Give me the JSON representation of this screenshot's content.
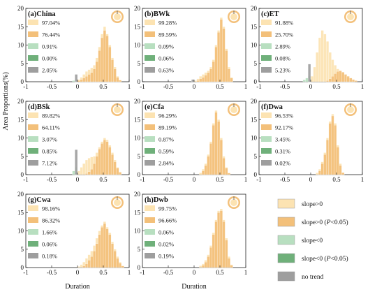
{
  "colors": {
    "slope_pos": "#fce3b2",
    "slope_pos_sig": "#f3c07a",
    "slope_neg": "#b8dfc0",
    "slope_neg_sig": "#6fb07a",
    "no_trend": "#9e9e9e",
    "ring_outer": "#f3c07a",
    "ring_inner": "#fce3b2"
  },
  "legend": {
    "items": [
      {
        "key": "slope_pos",
        "label": "slope>0",
        "suffix": ""
      },
      {
        "key": "slope_pos_sig",
        "label": "slope>0 (",
        "italic": "P",
        "suffix": "<0.05)"
      },
      {
        "key": "slope_neg",
        "label": "slope<0",
        "suffix": ""
      },
      {
        "key": "slope_neg_sig",
        "label": "slope<0 (",
        "italic": "P",
        "suffix": "<0.05)"
      },
      {
        "key": "no_trend",
        "label": "no trend",
        "suffix": ""
      }
    ]
  },
  "axes": {
    "ylabel": "Area Proportions(%)",
    "xlabel": "Duration",
    "xticks": [
      "-1",
      "-0.5",
      "0",
      "0.5",
      "1"
    ],
    "yticks": [
      "0",
      "5",
      "10",
      "15",
      "20"
    ]
  },
  "chart_data": [
    {
      "type": "bar",
      "title": "(a)China",
      "xlim": [
        -1,
        1
      ],
      "ylim": [
        0,
        20
      ],
      "percentages": [
        "97.04%",
        "76.44%",
        "0.91%",
        "0.00%",
        "2.05%"
      ],
      "bin_width": 0.05,
      "series": [
        {
          "name": "slope>0",
          "x": [
            -0.05,
            0,
            0.05,
            0.1,
            0.15,
            0.2,
            0.25,
            0.3,
            0.35,
            0.4,
            0.45,
            0.5,
            0.55,
            0.6,
            0.65,
            0.7,
            0.75,
            0.8
          ],
          "values": [
            0.3,
            0.6,
            1.2,
            2,
            2.8,
            3.3,
            3.8,
            4.5,
            6.5,
            9.5,
            13,
            15,
            13,
            10,
            6.5,
            4,
            1.5,
            0.5
          ]
        },
        {
          "name": "slope>0 (P<0.05)",
          "x": [
            0,
            0.05,
            0.1,
            0.15,
            0.2,
            0.25,
            0.3,
            0.35,
            0.4,
            0.45,
            0.5,
            0.55,
            0.6,
            0.65,
            0.7,
            0.75,
            0.8
          ],
          "values": [
            0.3,
            0.6,
            1,
            1.5,
            2,
            2.5,
            3.5,
            5.5,
            8.5,
            12,
            14,
            12.5,
            9.5,
            6,
            3.5,
            1.2,
            0.4
          ]
        },
        {
          "name": "slope<0",
          "x": [
            -0.1,
            -0.05
          ],
          "values": [
            0.3,
            0.5
          ]
        },
        {
          "name": "no trend",
          "x": [
            -0.05
          ],
          "values": [
            2
          ]
        }
      ]
    },
    {
      "type": "bar",
      "title": "(b)BWk",
      "xlim": [
        -1,
        1
      ],
      "ylim": [
        0,
        20
      ],
      "percentages": [
        "99.28%",
        "89.59%",
        "0.09%",
        "0.06%",
        "0.63%"
      ],
      "bin_width": 0.05,
      "series": [
        {
          "name": "slope>0",
          "x": [
            0,
            0.05,
            0.1,
            0.15,
            0.2,
            0.25,
            0.3,
            0.35,
            0.4,
            0.45,
            0.5,
            0.55,
            0.6,
            0.65,
            0.7
          ],
          "values": [
            0.3,
            0.8,
            1.5,
            2,
            2.5,
            3,
            4,
            6,
            10,
            14,
            17.5,
            15,
            9,
            4,
            1.2
          ]
        },
        {
          "name": "slope>0 (P<0.05)",
          "x": [
            0.05,
            0.1,
            0.15,
            0.2,
            0.25,
            0.3,
            0.35,
            0.4,
            0.45,
            0.5,
            0.55,
            0.6,
            0.65,
            0.7
          ],
          "values": [
            0.3,
            0.8,
            1.2,
            1.8,
            2.5,
            3.5,
            5.5,
            9.5,
            13.5,
            17,
            14.5,
            8.5,
            3.5,
            1
          ]
        },
        {
          "name": "no trend",
          "x": [
            -0.05
          ],
          "values": [
            0.6
          ]
        }
      ]
    },
    {
      "type": "bar",
      "title": "(c)ET",
      "xlim": [
        -1,
        1
      ],
      "ylim": [
        0,
        20
      ],
      "percentages": [
        "91.88%",
        "25.70%",
        "2.89%",
        "0.08%",
        "5.23%"
      ],
      "bin_width": 0.05,
      "series": [
        {
          "name": "slope>0",
          "x": [
            0,
            0.05,
            0.1,
            0.15,
            0.2,
            0.25,
            0.3,
            0.35,
            0.4,
            0.45,
            0.5,
            0.55,
            0.6,
            0.65,
            0.7,
            0.75,
            0.8
          ],
          "values": [
            1.5,
            4,
            8,
            12,
            14,
            13,
            11,
            8,
            6,
            4.5,
            3.5,
            2.5,
            2,
            1.5,
            1,
            0.5,
            0.3
          ]
        },
        {
          "name": "slope>0 (P<0.05)",
          "x": [
            0.3,
            0.35,
            0.4,
            0.45,
            0.5,
            0.55,
            0.6,
            0.65,
            0.7,
            0.75,
            0.8,
            0.85
          ],
          "values": [
            0.3,
            0.8,
            1.5,
            2.2,
            2.8,
            3,
            2.6,
            2,
            1.5,
            1,
            0.6,
            0.3
          ]
        },
        {
          "name": "slope<0",
          "x": [
            -0.15,
            -0.1,
            -0.05
          ],
          "values": [
            0.5,
            1,
            1.5
          ]
        },
        {
          "name": "slope<0 (P<0.05)",
          "x": [
            -0.05
          ],
          "values": [
            0.3
          ]
        },
        {
          "name": "no trend",
          "x": [
            -0.05
          ],
          "values": [
            4.8
          ]
        }
      ]
    },
    {
      "type": "bar",
      "title": "(d)BSk",
      "xlim": [
        -1,
        1
      ],
      "ylim": [
        0,
        20
      ],
      "percentages": [
        "89.82%",
        "64.11%",
        "3.07%",
        "0.85%",
        "7.12%"
      ],
      "bin_width": 0.05,
      "series": [
        {
          "name": "slope>0",
          "x": [
            0,
            0.05,
            0.1,
            0.15,
            0.2,
            0.25,
            0.3,
            0.35,
            0.4,
            0.45,
            0.5,
            0.55,
            0.6,
            0.65,
            0.7,
            0.75,
            0.8
          ],
          "values": [
            1,
            2,
            3,
            4,
            4.5,
            4.8,
            5,
            6,
            7.5,
            9,
            10,
            9.5,
            8,
            6,
            4,
            2,
            0.8
          ]
        },
        {
          "name": "slope>0 (P<0.05)",
          "x": [
            0.15,
            0.2,
            0.25,
            0.3,
            0.35,
            0.4,
            0.45,
            0.5,
            0.55,
            0.6,
            0.65,
            0.7,
            0.75,
            0.8
          ],
          "values": [
            0.3,
            0.8,
            1.5,
            3,
            5,
            7,
            8.5,
            9.5,
            9,
            7.5,
            5.5,
            3.5,
            1.8,
            0.6
          ]
        },
        {
          "name": "slope<0",
          "x": [
            -0.1,
            -0.05
          ],
          "values": [
            1,
            2
          ]
        },
        {
          "name": "slope<0 (P<0.05)",
          "x": [
            -0.05
          ],
          "values": [
            0.5
          ]
        },
        {
          "name": "no trend",
          "x": [
            -0.05
          ],
          "values": [
            6.8
          ]
        }
      ]
    },
    {
      "type": "bar",
      "title": "(e)Cfa",
      "xlim": [
        -1,
        1
      ],
      "ylim": [
        0,
        20
      ],
      "percentages": [
        "96.29%",
        "89.19%",
        "0.87%",
        "0.59%",
        "2.84%"
      ],
      "bin_width": 0.05,
      "series": [
        {
          "name": "slope>0",
          "x": [
            0.1,
            0.15,
            0.2,
            0.25,
            0.3,
            0.35,
            0.4,
            0.45,
            0.5,
            0.55,
            0.6,
            0.65
          ],
          "values": [
            0.5,
            1.5,
            3,
            5.5,
            9,
            14,
            17.5,
            15,
            10,
            5,
            2,
            0.5
          ]
        },
        {
          "name": "slope>0 (P<0.05)",
          "x": [
            0.15,
            0.2,
            0.25,
            0.3,
            0.35,
            0.4,
            0.45,
            0.5,
            0.55,
            0.6,
            0.65
          ],
          "values": [
            1,
            2.5,
            5,
            8.5,
            13.5,
            17,
            14.5,
            9.5,
            4.5,
            1.8,
            0.4
          ]
        }
      ]
    },
    {
      "type": "bar",
      "title": "(f)Dwa",
      "xlim": [
        -1,
        1
      ],
      "ylim": [
        0,
        20
      ],
      "percentages": [
        "96.53%",
        "92.17%",
        "3.45%",
        "0.31%",
        "0.02%"
      ],
      "bin_width": 0.05,
      "series": [
        {
          "name": "slope>0",
          "x": [
            0.1,
            0.15,
            0.2,
            0.25,
            0.3,
            0.35,
            0.4,
            0.45,
            0.5,
            0.55,
            0.6
          ],
          "values": [
            0.5,
            1.5,
            3.5,
            6,
            10,
            14.5,
            16.5,
            14,
            8,
            3,
            0.6
          ]
        },
        {
          "name": "slope>0 (P<0.05)",
          "x": [
            0.15,
            0.2,
            0.25,
            0.3,
            0.35,
            0.4,
            0.45,
            0.5,
            0.55,
            0.6
          ],
          "values": [
            1,
            3,
            5.5,
            9.5,
            14,
            16,
            13.5,
            7.5,
            2.5,
            0.5
          ]
        }
      ]
    },
    {
      "type": "bar",
      "title": "(g)Cwa",
      "xlim": [
        -1,
        1
      ],
      "ylim": [
        0,
        20
      ],
      "percentages": [
        "98.16%",
        "86.32%",
        "1.66%",
        "0.06%",
        "0.18%"
      ],
      "bin_width": 0.05,
      "series": [
        {
          "name": "slope>0",
          "x": [
            0,
            0.05,
            0.1,
            0.15,
            0.2,
            0.25,
            0.3,
            0.35,
            0.4,
            0.45,
            0.5,
            0.55,
            0.6,
            0.65,
            0.7,
            0.75,
            0.8,
            0.85
          ],
          "values": [
            0.3,
            0.8,
            1.5,
            2.5,
            3.5,
            4.5,
            6,
            8,
            10,
            11.5,
            12.5,
            11,
            9.5,
            7,
            5,
            3,
            1.5,
            0.5
          ]
        },
        {
          "name": "slope>0 (P<0.05)",
          "x": [
            0.1,
            0.15,
            0.2,
            0.25,
            0.3,
            0.35,
            0.4,
            0.45,
            0.5,
            0.55,
            0.6,
            0.65,
            0.7,
            0.75,
            0.8,
            0.85
          ],
          "values": [
            0.4,
            1,
            2,
            3,
            4.5,
            6.5,
            9,
            11,
            12,
            10.5,
            9,
            6.5,
            4.5,
            2.5,
            1.2,
            0.4
          ]
        }
      ]
    },
    {
      "type": "bar",
      "title": "(h)Dwb",
      "xlim": [
        -1,
        1
      ],
      "ylim": [
        0,
        20
      ],
      "percentages": [
        "99.75%",
        "96.66%",
        "0.06%",
        "0.02%",
        "0.19%"
      ],
      "bin_width": 0.05,
      "series": [
        {
          "name": "slope>0",
          "x": [
            0.1,
            0.15,
            0.2,
            0.25,
            0.3,
            0.35,
            0.4,
            0.45,
            0.5,
            0.55,
            0.6,
            0.65,
            0.7
          ],
          "values": [
            0.5,
            1,
            2,
            3.5,
            6,
            9.5,
            13,
            15.5,
            16,
            13,
            8,
            3,
            0.8
          ]
        },
        {
          "name": "slope>0 (P<0.05)",
          "x": [
            0.15,
            0.2,
            0.25,
            0.3,
            0.35,
            0.4,
            0.45,
            0.5,
            0.55,
            0.6,
            0.65,
            0.7
          ],
          "values": [
            0.6,
            1.5,
            3,
            5.5,
            9,
            12.5,
            15,
            15.5,
            12.5,
            7.5,
            2.5,
            0.6
          ]
        }
      ]
    }
  ]
}
